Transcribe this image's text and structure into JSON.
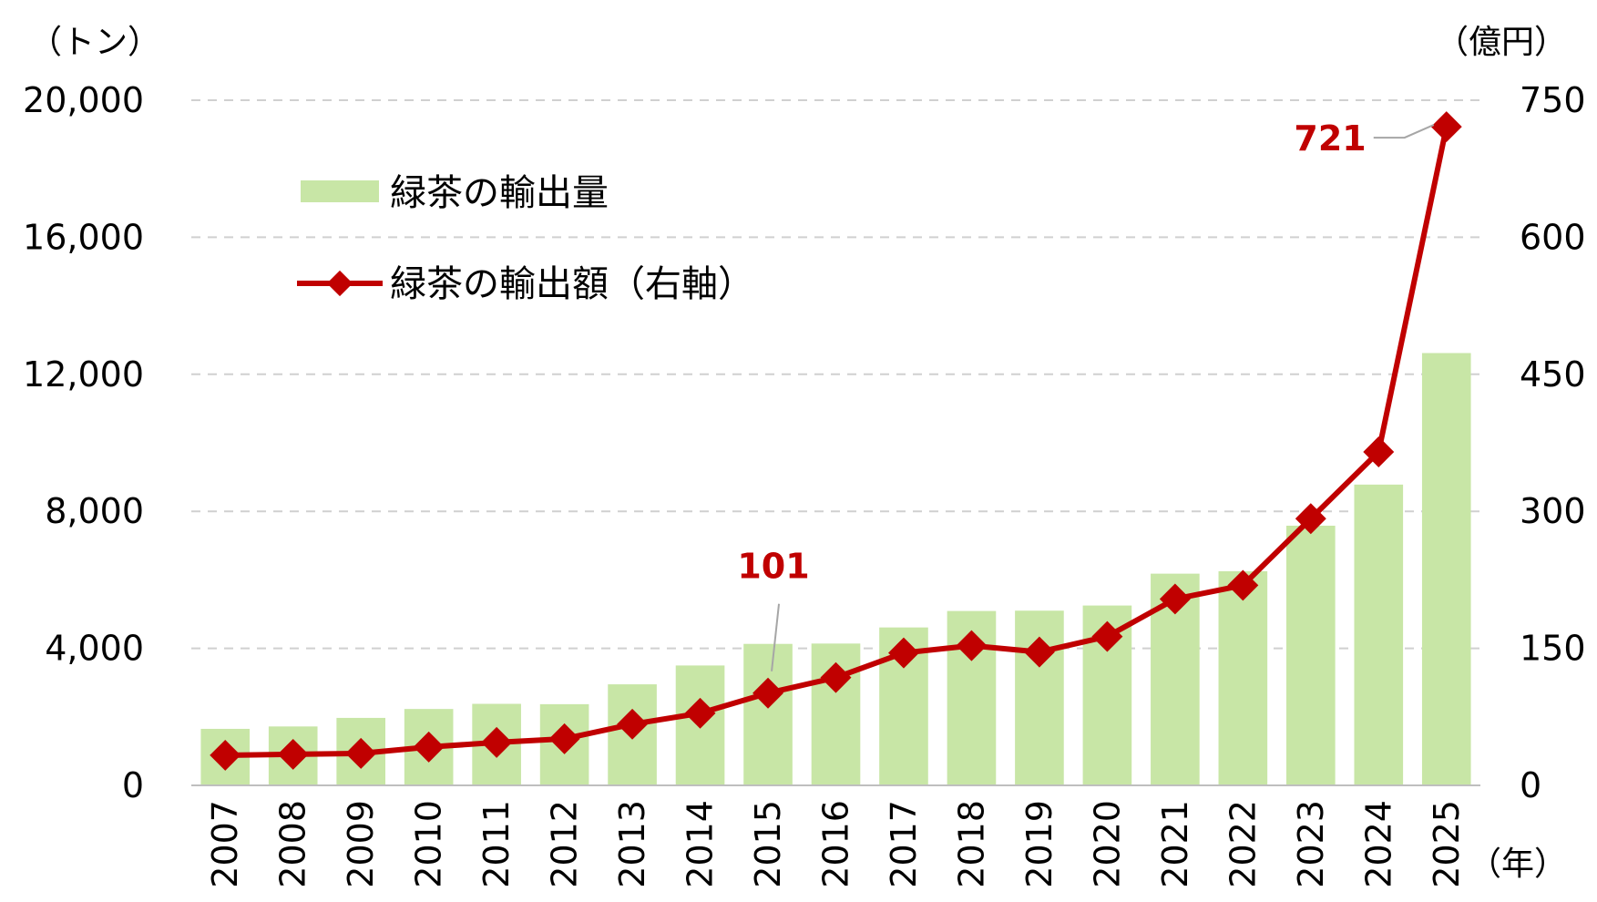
{
  "chart_data": {
    "type": "bar",
    "categories": [
      "2007",
      "2008",
      "2009",
      "2010",
      "2011",
      "2012",
      "2013",
      "2014",
      "2015",
      "2016",
      "2017",
      "2018",
      "2019",
      "2020",
      "2021",
      "2022",
      "2023",
      "2024",
      "2025"
    ],
    "series": [
      {
        "name": "緑茶の輸出量",
        "type": "bar",
        "axis": "left",
        "color": "#c8e6a6",
        "values": [
          1650,
          1720,
          1970,
          2230,
          2380,
          2370,
          2950,
          3500,
          4130,
          4140,
          4610,
          5090,
          5100,
          5250,
          6180,
          6250,
          7580,
          8780,
          12620
        ]
      },
      {
        "name": "緑茶の輸出額（右軸）",
        "type": "line",
        "axis": "right",
        "color": "#c00000",
        "values": [
          33,
          34,
          35,
          42,
          47,
          51,
          67,
          79,
          101,
          118,
          145,
          153,
          146,
          163,
          204,
          219,
          292,
          365,
          721
        ]
      }
    ],
    "y_left": {
      "unit": "（トン）",
      "min": 0,
      "max": 20000,
      "ticks": [
        "0",
        "4,000",
        "8,000",
        "12,000",
        "16,000",
        "20,000"
      ]
    },
    "y_right": {
      "unit": "（億円）",
      "min": 0,
      "max": 750,
      "ticks": [
        "0",
        "150",
        "300",
        "450",
        "600",
        "750"
      ]
    },
    "x_unit": "（年）",
    "annotations": [
      {
        "series": 1,
        "index": 8,
        "text": "101"
      },
      {
        "series": 1,
        "index": 18,
        "text": "721"
      }
    ],
    "grid": true,
    "legend": "top-left"
  }
}
